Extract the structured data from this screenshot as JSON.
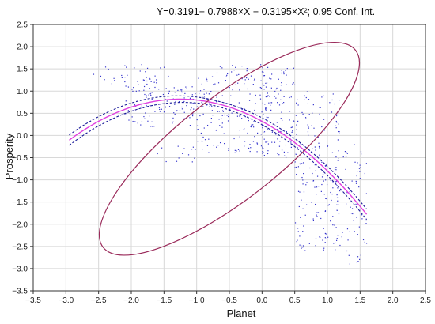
{
  "chart_data": {
    "type": "scatter",
    "title": "Y=0.3191− 0.7988×X − 0.3195×X²; 0.95 Conf. Int.",
    "xlabel": "Planet",
    "ylabel": "Prosperity",
    "xlim": [
      -3.5,
      2.5
    ],
    "ylim": [
      -3.5,
      2.5
    ],
    "xticks": [
      -3.5,
      -3.0,
      -2.5,
      -2.0,
      -1.5,
      -1.0,
      -0.5,
      0.0,
      0.5,
      1.0,
      1.5,
      2.0,
      2.5
    ],
    "yticks": [
      -3.5,
      -3.0,
      -2.5,
      -2.0,
      -1.5,
      -1.0,
      -0.5,
      0.0,
      0.5,
      1.0,
      1.5,
      2.0,
      2.5
    ],
    "xtick_labels": [
      "−3.5",
      "−3.0",
      "−2.5",
      "−2.0",
      "−1.5",
      "−1.0",
      "−0.5",
      "0.0",
      "0.5",
      "1.0",
      "1.5",
      "2.0",
      "2.5"
    ],
    "ytick_labels": [
      "−3.5",
      "−3.0",
      "−2.5",
      "−2.0",
      "−1.5",
      "−1.0",
      "−0.5",
      "0.0",
      "0.5",
      "1.0",
      "1.5",
      "2.0",
      "2.5"
    ],
    "grid": true,
    "fit": {
      "model": "quadratic",
      "coefficients": {
        "intercept": 0.3191,
        "x": -0.7988,
        "x2": -0.3195
      },
      "x_range": [
        -2.95,
        1.6
      ],
      "confidence_level": 0.95
    },
    "ellipse": {
      "center": [
        -0.5,
        -0.3
      ],
      "semi_axes": [
        2.45,
        1.15
      ],
      "rotation_deg": -38
    },
    "scatter_regions": [
      {
        "x_range": [
          -2.6,
          -1.4
        ],
        "y_range": [
          1.1,
          1.6
        ],
        "count": 40
      },
      {
        "x_range": [
          -2.1,
          -0.8
        ],
        "y_range": [
          0.2,
          1.1
        ],
        "count": 120
      },
      {
        "x_range": [
          -1.0,
          0.1
        ],
        "y_range": [
          -0.4,
          1.6
        ],
        "count": 180
      },
      {
        "x_range": [
          -1.6,
          -1.0
        ],
        "y_range": [
          -0.6,
          -0.2
        ],
        "count": 14
      },
      {
        "x_range": [
          0.0,
          0.5
        ],
        "y_range": [
          -0.5,
          1.6
        ],
        "count": 110
      },
      {
        "x_range": [
          0.5,
          1.2
        ],
        "y_range": [
          -2.6,
          1.0
        ],
        "count": 200
      },
      {
        "x_range": [
          1.1,
          1.6
        ],
        "y_range": [
          -2.9,
          -0.1
        ],
        "count": 70
      }
    ],
    "colors": {
      "points": "#3333cc",
      "fit_line": "#e040e0",
      "ci_lines": "#1a1a99",
      "ellipse": "#9a2a5a",
      "grid": "#d8d8d8",
      "axes": "#333333"
    }
  }
}
